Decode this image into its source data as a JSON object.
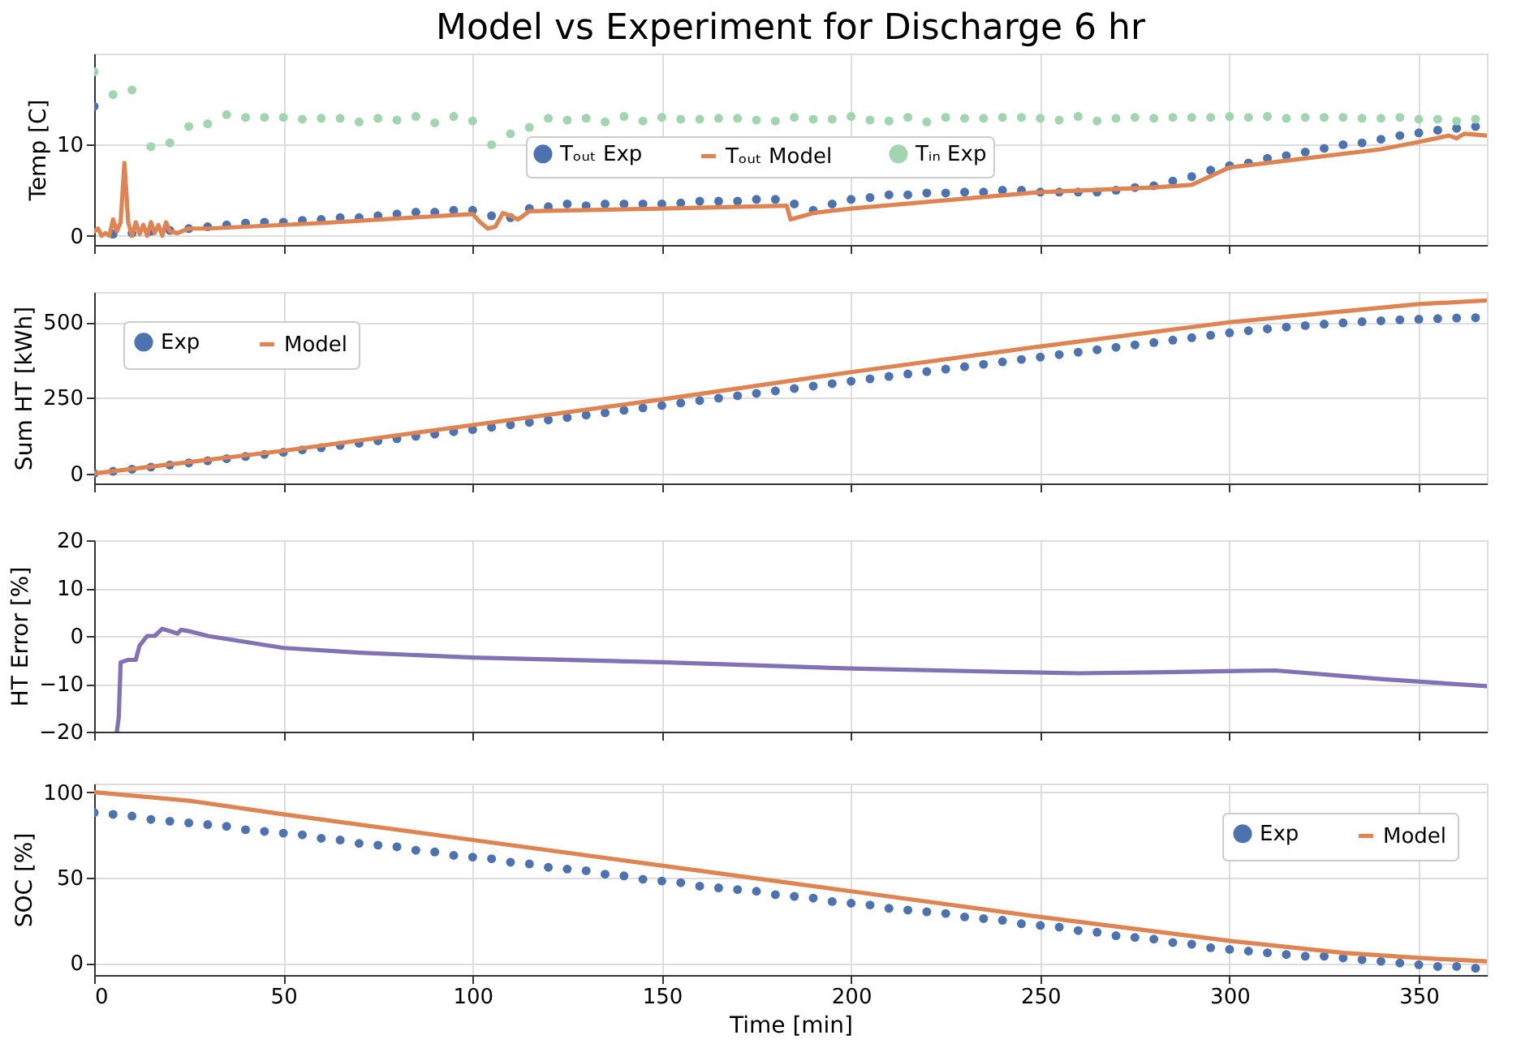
{
  "chart_data": [
    {
      "type": "line",
      "title": "Model vs Experiment for Discharge 6 hr",
      "ylabel": "Temp [C]",
      "xlim": [
        0,
        368
      ],
      "xticks": [
        0,
        50,
        100,
        150,
        200,
        250,
        300,
        350
      ],
      "ylim": [
        -1,
        20
      ],
      "yticks": [
        0,
        10
      ],
      "grid": true,
      "legend": "center",
      "tick_labels": "y",
      "line_style": "solid",
      "series": [
        {
          "name": "Tₒᵤₜ Exp",
          "type": "scatter",
          "marker": "circle",
          "color": "#4c72b0",
          "x": [
            0,
            5,
            10,
            15,
            20,
            25,
            30,
            35,
            40,
            45,
            50,
            55,
            60,
            65,
            70,
            75,
            80,
            85,
            90,
            95,
            100,
            105,
            110,
            115,
            120,
            125,
            130,
            135,
            140,
            145,
            150,
            155,
            160,
            165,
            170,
            175,
            180,
            185,
            190,
            195,
            200,
            205,
            210,
            215,
            220,
            225,
            230,
            235,
            240,
            245,
            250,
            255,
            260,
            265,
            270,
            275,
            280,
            285,
            290,
            295,
            300,
            305,
            310,
            315,
            320,
            325,
            330,
            335,
            340,
            345,
            350,
            355,
            360,
            365
          ],
          "values": [
            14.2,
            0.2,
            0.3,
            0.5,
            0.6,
            0.8,
            1.0,
            1.2,
            1.4,
            1.5,
            1.5,
            1.7,
            1.8,
            2.0,
            2.0,
            2.2,
            2.4,
            2.6,
            2.6,
            2.8,
            2.8,
            2.2,
            2.0,
            3.0,
            3.2,
            3.5,
            3.3,
            3.5,
            3.5,
            3.5,
            3.5,
            3.6,
            3.8,
            3.8,
            3.8,
            4.0,
            4.0,
            3.5,
            2.8,
            3.5,
            4.0,
            4.2,
            4.5,
            4.5,
            4.7,
            4.7,
            4.8,
            4.8,
            5.0,
            5.0,
            4.8,
            4.8,
            4.8,
            4.8,
            5.0,
            5.3,
            5.5,
            6.0,
            6.5,
            7.2,
            7.7,
            8.0,
            8.5,
            8.8,
            9.2,
            9.6,
            10.0,
            10.2,
            10.6,
            11.0,
            11.3,
            11.6,
            11.8,
            12.0
          ]
        },
        {
          "name": "Tₒᵤₜ Model",
          "color": "#dd8452",
          "x": [
            0,
            1,
            2,
            3,
            4,
            5,
            6,
            7,
            8,
            9,
            10,
            11,
            12,
            13,
            14,
            15,
            16,
            17,
            18,
            19,
            20,
            22,
            25,
            30,
            60,
            100,
            102,
            104,
            106,
            108,
            110,
            112,
            115,
            150,
            183,
            184,
            190,
            200,
            250,
            280,
            290,
            300,
            310,
            340,
            350,
            358,
            360,
            362,
            368
          ],
          "values": [
            0.5,
            0.8,
            0,
            0.3,
            0,
            1.8,
            0.5,
            1.5,
            8,
            1.5,
            0,
            1.5,
            0.2,
            1.2,
            0,
            1.5,
            0.3,
            1.2,
            0,
            1.5,
            0.5,
            0.3,
            0.8,
            0.8,
            1.4,
            2.4,
            1.5,
            0.8,
            1.0,
            2.5,
            2.2,
            1.8,
            2.7,
            3.0,
            3.3,
            1.8,
            2.5,
            3.0,
            4.8,
            5.3,
            5.6,
            7.5,
            8.0,
            9.5,
            10.3,
            11.0,
            10.7,
            11.2,
            11.0
          ]
        },
        {
          "name": "Tᵢₙ Exp",
          "type": "scatter",
          "marker": "circle",
          "color": "#a1d5b0",
          "x": [
            0,
            5,
            10,
            15,
            20,
            25,
            30,
            35,
            40,
            45,
            50,
            55,
            60,
            65,
            70,
            75,
            80,
            85,
            90,
            95,
            100,
            105,
            110,
            115,
            120,
            125,
            130,
            135,
            140,
            145,
            150,
            155,
            160,
            165,
            170,
            175,
            180,
            185,
            190,
            195,
            200,
            205,
            210,
            215,
            220,
            225,
            230,
            235,
            240,
            245,
            250,
            255,
            260,
            265,
            270,
            275,
            280,
            285,
            290,
            295,
            300,
            305,
            310,
            315,
            320,
            325,
            330,
            335,
            340,
            345,
            350,
            355,
            360,
            365
          ],
          "values": [
            18,
            15.5,
            16,
            9.8,
            10.2,
            12,
            12.3,
            13.3,
            13,
            13,
            13,
            12.8,
            12.9,
            12.9,
            12.5,
            12.9,
            12.7,
            13.1,
            12.4,
            13.1,
            12.6,
            10.0,
            11.2,
            11.9,
            12.9,
            12.7,
            12.9,
            12.5,
            13.1,
            12.6,
            13,
            12.8,
            12.8,
            12.9,
            12.9,
            12.7,
            12.6,
            13,
            12.8,
            12.8,
            13.1,
            12.7,
            12.6,
            13.0,
            12.5,
            13.0,
            12.9,
            12.9,
            13.0,
            13.0,
            12.9,
            12.7,
            13.1,
            12.6,
            12.9,
            13.0,
            12.9,
            13.0,
            13.0,
            13.0,
            13.1,
            13.0,
            13.1,
            12.9,
            13.0,
            13.0,
            13.0,
            12.9,
            12.9,
            13.0,
            12.8,
            12.8,
            12.6,
            12.8
          ]
        }
      ]
    },
    {
      "type": "line",
      "ylabel": "Sum HT [kWh]",
      "xlim": [
        0,
        368
      ],
      "xticks": [
        0,
        50,
        100,
        150,
        200,
        250,
        300,
        350
      ],
      "ylim": [
        -33,
        600
      ],
      "yticks": [
        0,
        250,
        500
      ],
      "grid": true,
      "legend": "top left",
      "tick_labels": "y",
      "line_style": "solid",
      "series": [
        {
          "name": "Exp",
          "type": "scatter",
          "marker": "circle",
          "color": "#4c72b0",
          "x": [
            0,
            5,
            10,
            15,
            20,
            25,
            30,
            35,
            40,
            45,
            50,
            55,
            60,
            65,
            70,
            75,
            80,
            85,
            90,
            95,
            100,
            105,
            110,
            115,
            120,
            125,
            130,
            135,
            140,
            145,
            150,
            155,
            160,
            165,
            170,
            175,
            180,
            185,
            190,
            195,
            200,
            205,
            210,
            215,
            220,
            225,
            230,
            235,
            240,
            245,
            250,
            255,
            260,
            265,
            270,
            275,
            280,
            285,
            290,
            295,
            300,
            305,
            310,
            315,
            320,
            325,
            330,
            335,
            340,
            345,
            350,
            355,
            360,
            365
          ],
          "values": [
            0,
            7,
            14,
            21,
            28,
            35,
            42,
            49,
            56,
            63,
            70,
            78,
            85,
            93,
            100,
            108,
            115,
            123,
            130,
            138,
            145,
            153,
            161,
            169,
            177,
            185,
            193,
            201,
            209,
            217,
            225,
            233,
            241,
            249,
            257,
            265,
            273,
            281,
            289,
            297,
            305,
            313,
            321,
            329,
            337,
            345,
            353,
            361,
            369,
            377,
            385,
            393,
            401,
            409,
            417,
            425,
            433,
            441,
            449,
            457,
            465,
            472,
            478,
            484,
            489,
            494,
            498,
            502,
            505,
            508,
            510,
            512,
            514,
            515
          ]
        },
        {
          "name": "Model",
          "color": "#dd8452",
          "x": [
            0,
            50,
            100,
            150,
            200,
            250,
            300,
            350,
            368
          ],
          "values": [
            0,
            75,
            160,
            245,
            335,
            420,
            500,
            560,
            572
          ]
        }
      ]
    },
    {
      "type": "line",
      "ylabel": "HT Error [%]",
      "xlim": [
        0,
        368
      ],
      "xticks": [
        0,
        50,
        100,
        150,
        200,
        250,
        300,
        350
      ],
      "ylim": [
        -20,
        20
      ],
      "yticks": [
        -20,
        -10,
        0,
        10,
        20
      ],
      "grid": true,
      "tick_labels": "y",
      "line_style": "solid",
      "series": [
        {
          "color": "#8172b3",
          "x": [
            6,
            6.5,
            7,
            9,
            11,
            12,
            14,
            16,
            18,
            20,
            22,
            23,
            25,
            30,
            50,
            70,
            100,
            150,
            200,
            240,
            260,
            280,
            312,
            340,
            368
          ],
          "values": [
            -20,
            -17,
            -5.5,
            -5,
            -5,
            -2,
            0,
            0,
            1.5,
            1,
            0.5,
            1.3,
            1,
            0,
            -2.5,
            -3.5,
            -4.5,
            -5.5,
            -6.8,
            -7.5,
            -7.8,
            -7.6,
            -7.2,
            -9,
            -10.5
          ]
        }
      ]
    },
    {
      "type": "line",
      "ylabel": "SOC [%]",
      "xlabel": "Time [min]",
      "xlim": [
        0,
        368
      ],
      "xticks": [
        0,
        50,
        100,
        150,
        200,
        250,
        300,
        350
      ],
      "ylim": [
        -7,
        105
      ],
      "yticks": [
        0,
        50,
        100
      ],
      "grid": true,
      "legend": "top right",
      "line_style": "solid",
      "series": [
        {
          "name": "Exp",
          "type": "scatter",
          "marker": "circle",
          "color": "#4c72b0",
          "x": [
            0,
            5,
            10,
            15,
            20,
            25,
            30,
            35,
            40,
            45,
            50,
            55,
            60,
            65,
            70,
            75,
            80,
            85,
            90,
            95,
            100,
            105,
            110,
            115,
            120,
            125,
            130,
            135,
            140,
            145,
            150,
            155,
            160,
            165,
            170,
            175,
            180,
            185,
            190,
            195,
            200,
            205,
            210,
            215,
            220,
            225,
            230,
            235,
            240,
            245,
            250,
            255,
            260,
            265,
            270,
            275,
            280,
            285,
            290,
            295,
            300,
            305,
            310,
            315,
            320,
            325,
            330,
            335,
            340,
            345,
            350,
            355,
            360,
            365
          ],
          "values": [
            88,
            87,
            86,
            84,
            83,
            82,
            81,
            80,
            78,
            77,
            76,
            75,
            73,
            72,
            70,
            69,
            68,
            66,
            65,
            63,
            62,
            61,
            59,
            58,
            56,
            55,
            54,
            52,
            51,
            49,
            48,
            47,
            45,
            44,
            43,
            42,
            40,
            39,
            38,
            36,
            35,
            34,
            32,
            31,
            30,
            29,
            27,
            26,
            25,
            23,
            22,
            21,
            19,
            18,
            16,
            15,
            14,
            12,
            11,
            9,
            8,
            7,
            6,
            5,
            4,
            4,
            3,
            2,
            1,
            0,
            -1,
            -2,
            -2,
            -3
          ]
        },
        {
          "name": "Model",
          "color": "#dd8452",
          "x": [
            0,
            25,
            50,
            100,
            150,
            200,
            250,
            300,
            330,
            350,
            368
          ],
          "values": [
            100,
            95,
            87,
            72,
            57,
            42,
            27,
            13,
            6,
            3,
            1
          ]
        }
      ]
    }
  ]
}
